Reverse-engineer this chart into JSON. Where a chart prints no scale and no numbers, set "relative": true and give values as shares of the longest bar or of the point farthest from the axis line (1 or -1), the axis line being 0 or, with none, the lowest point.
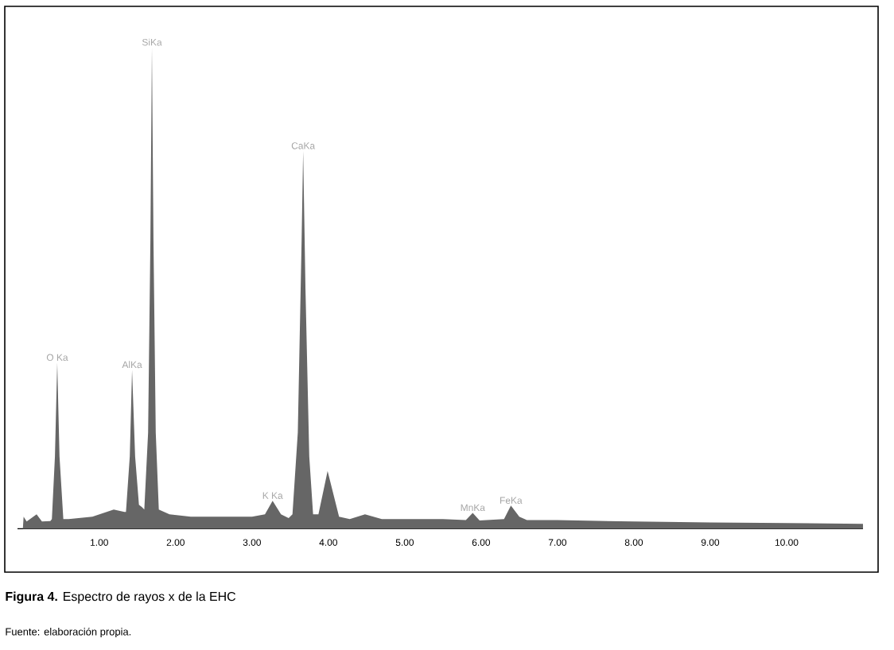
{
  "chart_data": {
    "type": "area",
    "relative": true,
    "color": "#666666",
    "title": "**Figura 4.** Espectro de rayos x de la EHC",
    "x": [
      0.0,
      0.01,
      0.05,
      0.18,
      0.25,
      0.36,
      0.38,
      0.42,
      0.45,
      0.48,
      0.53,
      0.6,
      0.91,
      1.19,
      1.33,
      1.35,
      1.4,
      1.43,
      1.47,
      1.52,
      1.56,
      1.59,
      1.64,
      1.67,
      1.69,
      1.71,
      1.74,
      1.78,
      1.92,
      2.2,
      2.6,
      3.0,
      3.17,
      3.27,
      3.38,
      3.48,
      3.53,
      3.6,
      3.65,
      3.67,
      3.7,
      3.75,
      3.8,
      3.87,
      3.99,
      4.14,
      4.28,
      4.48,
      4.7,
      5.0,
      5.5,
      5.8,
      5.89,
      5.98,
      6.3,
      6.39,
      6.5,
      6.6,
      7.0,
      8.0,
      9.0,
      10.0,
      11.0
    ],
    "values": [
      0.0,
      0.025,
      0.015,
      0.03,
      0.015,
      0.016,
      0.02,
      0.15,
      0.345,
      0.15,
      0.02,
      0.02,
      0.025,
      0.04,
      0.035,
      0.035,
      0.15,
      0.33,
      0.15,
      0.05,
      0.045,
      0.04,
      0.2,
      0.6,
      1.0,
      0.6,
      0.2,
      0.04,
      0.03,
      0.025,
      0.025,
      0.025,
      0.03,
      0.058,
      0.03,
      0.022,
      0.03,
      0.2,
      0.6,
      0.785,
      0.5,
      0.15,
      0.03,
      0.03,
      0.12,
      0.025,
      0.02,
      0.03,
      0.02,
      0.02,
      0.02,
      0.018,
      0.033,
      0.017,
      0.02,
      0.048,
      0.025,
      0.018,
      0.018,
      0.015,
      0.013,
      0.012,
      0.01
    ],
    "xlim": [
      -0.07,
      11.0
    ],
    "xticks": [
      {
        "value": 1,
        "label": "1.00"
      },
      {
        "value": 2,
        "label": "2.00"
      },
      {
        "value": 3,
        "label": "3.00"
      },
      {
        "value": 4,
        "label": "4.00"
      },
      {
        "value": 5,
        "label": "5.00"
      },
      {
        "value": 6,
        "label": "6.00"
      },
      {
        "value": 7,
        "label": "7.00"
      },
      {
        "value": 8,
        "label": "8.00"
      },
      {
        "value": 9,
        "label": "9.00"
      },
      {
        "value": 10,
        "label": "10.00"
      }
    ],
    "annotations": [
      {
        "text": "O Ka",
        "x": 0.45,
        "y": 0.345
      },
      {
        "text": "AlKa",
        "x": 1.43,
        "y": 0.33
      },
      {
        "text": "SiKa",
        "x": 1.69,
        "y": 1.0
      },
      {
        "text": "K Ka",
        "x": 3.27,
        "y": 0.058
      },
      {
        "text": "CaKa",
        "x": 3.67,
        "y": 0.785
      },
      {
        "text": "MnKa",
        "x": 5.89,
        "y": 0.033
      },
      {
        "text": "FeKa",
        "x": 6.39,
        "y": 0.048
      },
      "Fuente: elaboración propia."
    ]
  }
}
